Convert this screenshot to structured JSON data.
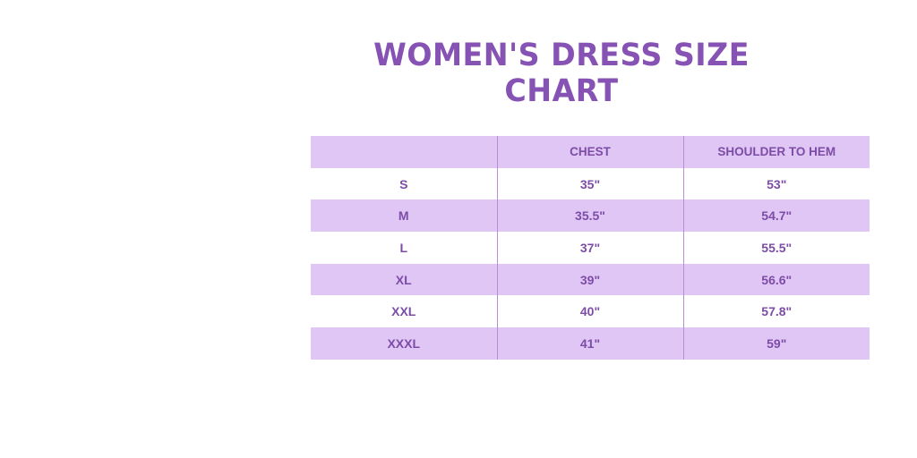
{
  "title": "WOMEN'S DRESS SIZE CHART",
  "colors": {
    "accent": "#8652b3",
    "row_shade": "#e0c6f5",
    "text": "#7c4ca6"
  },
  "table": {
    "headers": [
      "",
      "CHEST",
      "SHOULDER TO HEM"
    ],
    "rows": [
      [
        "S",
        "35\"",
        "53\""
      ],
      [
        "M",
        "35.5\"",
        "54.7\""
      ],
      [
        "L",
        "37\"",
        "55.5\""
      ],
      [
        "XL",
        "39\"",
        "56.6\""
      ],
      [
        "XXL",
        "40\"",
        "57.8\""
      ],
      [
        "XXXL",
        "41\"",
        "59\""
      ]
    ]
  }
}
